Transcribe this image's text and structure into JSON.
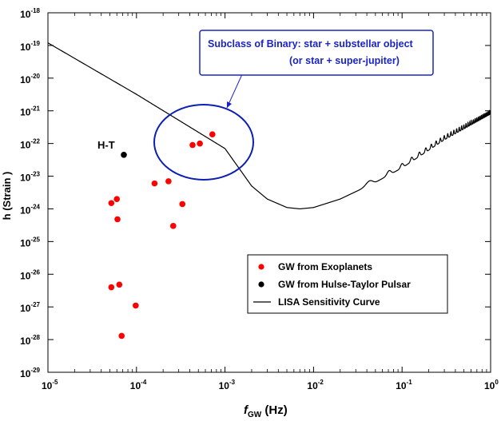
{
  "chart_data": {
    "type": "scatter",
    "title": "",
    "xlabel_main": "f",
    "xlabel_sub": "GW",
    "xlabel_unit": " (Hz)",
    "ylabel": "h (Strain )",
    "xscale": "log",
    "yscale": "log",
    "xlim": [
      1e-05,
      1
    ],
    "ylim": [
      1e-29,
      1e-18
    ],
    "grid": false,
    "legend_position": "bottom-right",
    "x_tick_exponents": [
      -5,
      -4,
      -3,
      -2,
      -1,
      0
    ],
    "y_tick_exponents": [
      -18,
      -19,
      -20,
      -21,
      -22,
      -23,
      -24,
      -25,
      -26,
      -27,
      -28,
      -29
    ],
    "series": [
      {
        "name": "GW from Exoplanets",
        "kind": "scatter",
        "color": "#ff0000",
        "points": [
          {
            "x": 5.2e-05,
            "y": 1.5e-24
          },
          {
            "x": 6e-05,
            "y": 2e-24
          },
          {
            "x": 6.1e-05,
            "y": 4.8e-25
          },
          {
            "x": 5.2e-05,
            "y": 4e-27
          },
          {
            "x": 6.4e-05,
            "y": 4.8e-27
          },
          {
            "x": 9.8e-05,
            "y": 1.1e-27
          },
          {
            "x": 6.8e-05,
            "y": 1.3e-28
          },
          {
            "x": 0.00016,
            "y": 6e-24
          },
          {
            "x": 0.00023,
            "y": 7e-24
          },
          {
            "x": 0.00033,
            "y": 1.4e-24
          },
          {
            "x": 0.00026,
            "y": 3e-25
          },
          {
            "x": 0.00043,
            "y": 9e-23
          },
          {
            "x": 0.00052,
            "y": 1e-22
          },
          {
            "x": 0.00072,
            "y": 1.9e-22
          }
        ]
      },
      {
        "name": "GW from Hulse-Taylor Pulsar",
        "kind": "scatter",
        "color": "#000000",
        "points": [
          {
            "x": 7.2e-05,
            "y": 4.5e-23
          }
        ]
      },
      {
        "name": "LISA Sensitivity Curve",
        "kind": "line",
        "color": "#000000",
        "shape": {
          "base": [
            {
              "x": 1e-05,
              "y": 1.2e-19
            },
            {
              "x": 0.0001,
              "y": 3.2e-21
            },
            {
              "x": 0.001,
              "y": 7e-23
            },
            {
              "x": 0.002,
              "y": 5e-24
            },
            {
              "x": 0.003,
              "y": 2e-24
            },
            {
              "x": 0.005,
              "y": 1.1e-24
            },
            {
              "x": 0.007,
              "y": 1e-24
            },
            {
              "x": 0.01,
              "y": 1.1e-24
            },
            {
              "x": 0.02,
              "y": 2e-24
            },
            {
              "x": 0.05,
              "y": 6.5e-24
            },
            {
              "x": 0.1,
              "y": 1.8e-23
            },
            {
              "x": 0.3,
              "y": 1.3e-22
            },
            {
              "x": 1.0,
              "y": 8e-22
            }
          ],
          "oscillation_start_x": 0.025,
          "oscillation_period_x": 0.0285
        }
      }
    ],
    "annotations": {
      "ht_label": "H-T",
      "callout_line1": "Subclass of Binary: star + substellar object",
      "callout_line2": "(or star + super-jupiter)",
      "ellipse_color": "#0b1fb5",
      "callout_color": "#1a24c8"
    }
  }
}
